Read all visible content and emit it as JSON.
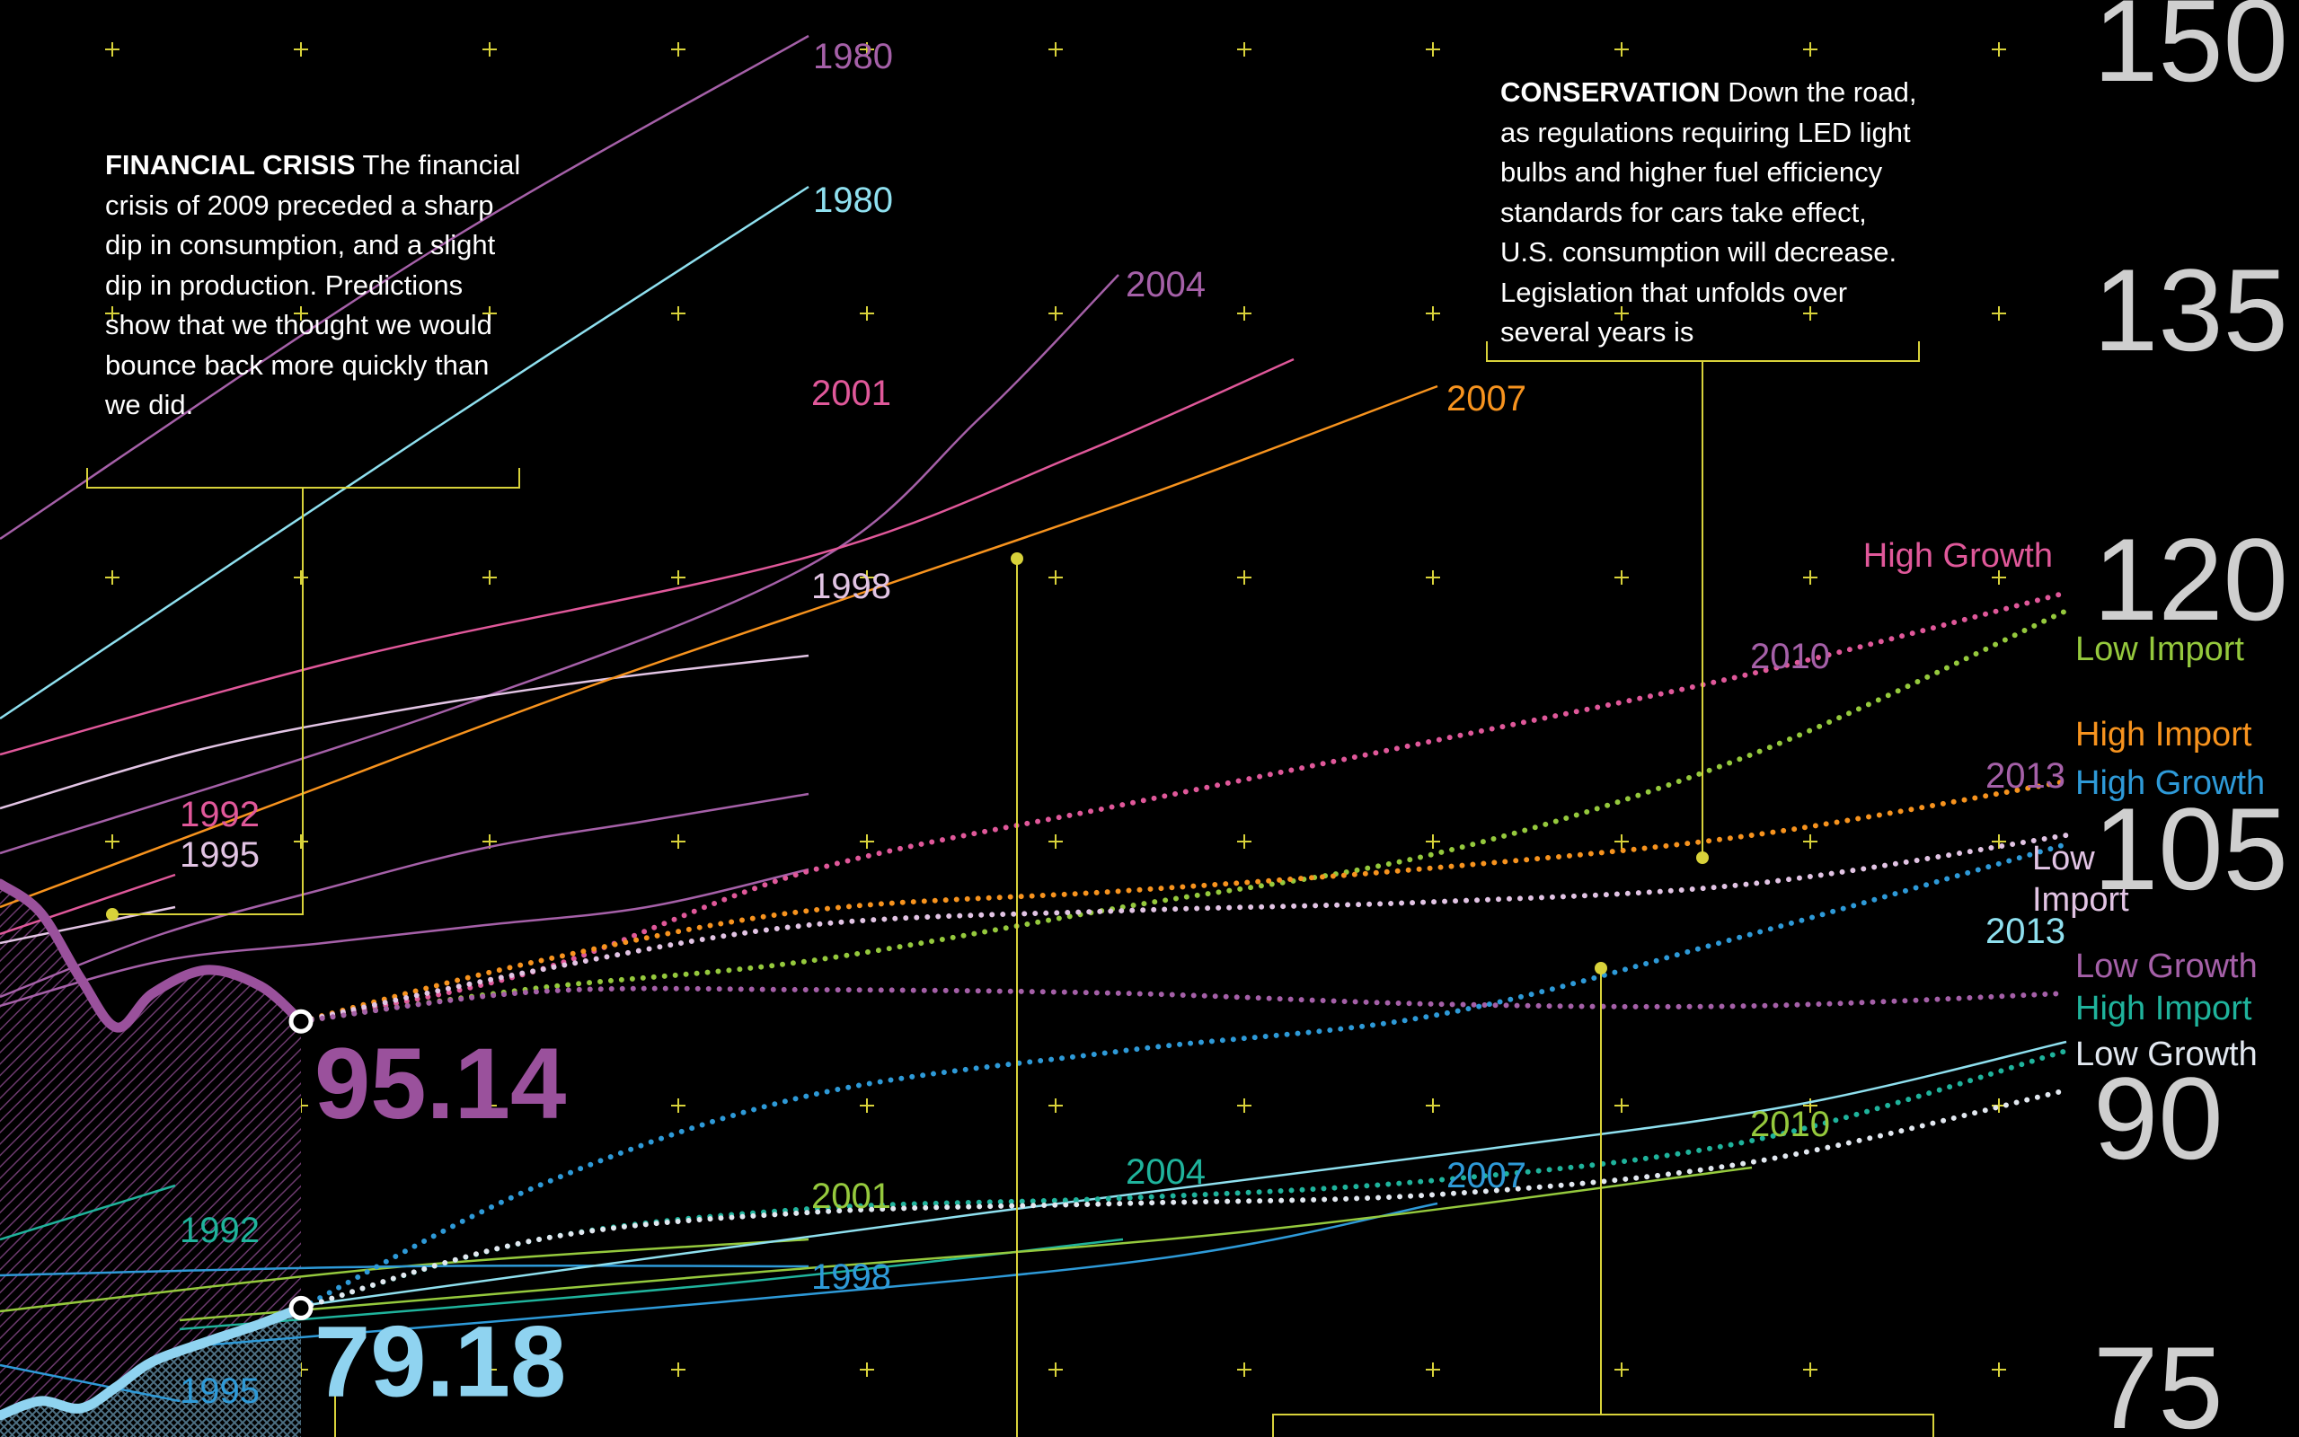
{
  "chart_data": {
    "type": "line",
    "colors": {
      "background": "#000000",
      "grid_mark": "#d8d23a",
      "connector": "#d8d23a",
      "axis_label": "#cfcfcf",
      "consumption": "#9a519c",
      "production": "#8fd3f0"
    },
    "y_axis": {
      "ticks": [
        "150",
        "135",
        "120",
        "105",
        "90",
        "75"
      ],
      "ylim": [
        72,
        152
      ],
      "position": "right"
    },
    "grid": "plus-markers",
    "highlights": [
      {
        "label": "95.14",
        "value": 95.14,
        "color": "#9a519c"
      },
      {
        "label": "79.18",
        "value": 79.18,
        "color": "#8fd3f0"
      }
    ],
    "history": [
      {
        "name": "consumption",
        "color": "#9a519c",
        "values": [
          102.8,
          101.2,
          97.5,
          94.8,
          96.7,
          98.0,
          97.1,
          95.14
        ]
      },
      {
        "name": "production",
        "color": "#8fd3f0",
        "values": [
          73.2,
          74.0,
          73.6,
          74.8,
          76.2,
          77.3,
          78.3,
          79.18
        ]
      }
    ],
    "forecasts": [
      {
        "label": "1980",
        "color": "#a560a8",
        "values": [
          122.0,
          138.0,
          150.0
        ]
      },
      {
        "label": "1980",
        "color": "#8fe0ef",
        "values": [
          112.0,
          128.0,
          141.6
        ]
      },
      {
        "label": "2004",
        "color": "#a560a8",
        "values": [
          104.5,
          112.5,
          120.5,
          128.7,
          136.7
        ]
      },
      {
        "label": "2001",
        "color": "#e0589a",
        "values": [
          110.0,
          115.5,
          121.0,
          126.7,
          132.0
        ]
      },
      {
        "label": "1998",
        "color": "#e2c4e4",
        "values": [
          107.0,
          110.3,
          112.5,
          114.2,
          115.5
        ]
      },
      {
        "label": "2007",
        "color": "#f7931e",
        "values": [
          101.5,
          107.5,
          113.5,
          119.0,
          124.5,
          130.5
        ]
      },
      {
        "label": "2010",
        "color": "#a560a8",
        "values": [
          96.5,
          100.0,
          102.5,
          104.8,
          106.3,
          107.8
        ]
      },
      {
        "label": "2013",
        "color": "#a560a8",
        "values": [
          96.0,
          98.5,
          99.5,
          100.5,
          101.5,
          103.6
        ]
      },
      {
        "label": "1992",
        "color": "#e0589a",
        "values": [
          100.0,
          103.3
        ]
      },
      {
        "label": "1995",
        "color": "#e2c4e4",
        "values": [
          99.5,
          101.5
        ]
      },
      {
        "label": "1992",
        "color": "#1fb39c",
        "values": [
          83.0,
          86.0
        ]
      },
      {
        "label": "1995",
        "color": "#2e9ad8",
        "values": [
          76.0,
          74.0
        ]
      },
      {
        "label": "2001",
        "color": "#95c93d",
        "values": [
          79.0,
          81.5,
          83.0
        ]
      },
      {
        "label": "1998",
        "color": "#2e9ad8",
        "values": [
          81.0,
          81.5,
          81.5
        ]
      },
      {
        "label": "2004",
        "color": "#1fb39c",
        "values": [
          78.0,
          80.5,
          83.0
        ]
      },
      {
        "label": "2007",
        "color": "#2e9ad8",
        "values": [
          77.0,
          79.5,
          82.0,
          85.0
        ]
      },
      {
        "label": "2010",
        "color": "#95c93d",
        "values": [
          78.5,
          81.0,
          83.5,
          87.0
        ]
      },
      {
        "label": "2013",
        "color": "#8fe0ef",
        "values": [
          79.3,
          84.5,
          88.0,
          90.5,
          94.0
        ]
      }
    ],
    "scenarios": [
      {
        "label": "High Growth",
        "color": "#e0589a",
        "values": [
          95.14,
          98.0,
          103.5,
          107.2,
          110.8,
          114.5,
          119.0
        ]
      },
      {
        "label": "Low Import",
        "color": "#95c93d",
        "values": [
          95.14,
          97.0,
          98.5,
          101.5,
          104.5,
          110.0,
          118.0
        ]
      },
      {
        "label": "High Import",
        "color": "#f7931e",
        "values": [
          95.14,
          98.5,
          101.3,
          102.4,
          103.7,
          105.5,
          108.5
        ]
      },
      {
        "label": "Low Import",
        "color": "#e2c4e4",
        "values": [
          95.14,
          98.0,
          100.5,
          101.3,
          101.8,
          102.8,
          105.5
        ]
      },
      {
        "label": "Low Growth",
        "color": "#a560a8",
        "values": [
          95.14,
          96.8,
          96.9,
          96.7,
          96.1,
          96.0,
          96.7
        ]
      },
      {
        "label": "High Growth",
        "color": "#2e9ad8",
        "values": [
          79.18,
          86.0,
          91.0,
          93.5,
          95.5,
          100.0,
          105.0
        ]
      },
      {
        "label": "High Import",
        "color": "#1fb39c",
        "values": [
          79.18,
          83.0,
          84.7,
          85.3,
          86.3,
          88.5,
          93.5
        ]
      },
      {
        "label": "Low Growth",
        "color": "#e2e8f0",
        "values": [
          79.18,
          83.0,
          84.5,
          85.0,
          85.5,
          87.3,
          91.3
        ]
      }
    ],
    "annotations": [
      {
        "head": "FINANCIAL CRISIS",
        "text": "The financial crisis of 2009 preceded a sharp dip in consumption, and a slight dip in production. Predictions show that we thought we would bounce back more quickly than we did."
      },
      {
        "head": "CONSERVATION",
        "text": "Down the road, as regulations requiring LED light bulbs and higher fuel efficiency standards for cars take effect, U.S. consumption will decrease. Legislation that unfolds over several years is"
      }
    ]
  }
}
